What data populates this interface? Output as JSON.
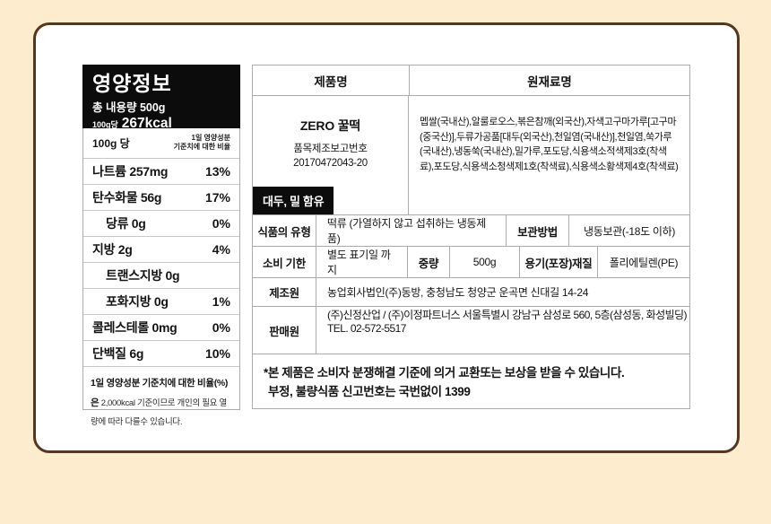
{
  "page": {
    "background_color": "#fdeccd",
    "card_border_color": "#55361e"
  },
  "nutrition": {
    "title": "영양정보",
    "total_amount": "총 내용량 500g",
    "per_unit": "100g당",
    "kcal": "267kcal",
    "serving_label": "100g 당",
    "serving_note_line1": "1일 영양성분",
    "serving_note_line2": "기준치에 대한 비율",
    "rows": [
      {
        "name": "나트륨 257mg",
        "pct": "13%"
      },
      {
        "name": "탄수화물 56g",
        "pct": "17%"
      },
      {
        "name": "당류 0g",
        "pct": "0%"
      },
      {
        "name": "지방 2g",
        "pct": "4%"
      },
      {
        "name": "트랜스지방 0g",
        "pct": ""
      },
      {
        "name": "포화지방 0g",
        "pct": "1%"
      },
      {
        "name": "콜레스테롤 0mg",
        "pct": "0%"
      },
      {
        "name": "단백질 6g",
        "pct": "10%"
      }
    ],
    "footnote_bold": "1일 영양성분 기준치에 대한 비율(%)은",
    "footnote_rest": " 2,000kcal 기준이므로 개인의 필요 열량에 따라 다를수 있습니다."
  },
  "product": {
    "header_product": "제품명",
    "header_ingredients": "원재료명",
    "name": "ZERO 꿀떡",
    "report_label": "품목제조보고번호",
    "report_number": "20170472043-20",
    "ingredients": "멥쌀(국내산),알룰로오스,볶은참깨(외국산),자색고구마가루[고구마(중국산)],두류가공품[대두(외국산),천일염(국내산)],천일염,쑥가루(국내산),냉동쑥(국내산),밀가루,포도당,식용색소적색제3호(착색료),포도당,식용색소청색제1호(착색료),식용색소황색제4호(착색료)",
    "allergen_badge": "대두, 밀 함유",
    "type_label": "식품의 유형",
    "type_value": "떡류 (가열하지 않고 섭취하는 냉동제품)",
    "storage_label": "보관방법",
    "storage_value": "냉동보관(-18도 이하)",
    "expiry_label": "소비 기한",
    "expiry_value": "별도 표기일 까지",
    "weight_label": "중량",
    "weight_value": "500g",
    "package_label": "용기(포장)재질",
    "package_value": "폴리에틸렌(PE)",
    "manufacturer_label": "제조원",
    "manufacturer_value": "농업회사법인(주)동방, 충청남도 청양군 운곡면 신대길 14-24",
    "seller_label": "판매원",
    "seller_value": "(주)신정산업 / (주)이정파트너스 서울특별시 강남구 삼성로 560, 5층(삼성동, 화성빌딩)",
    "seller_tel": "TEL. 02-572-5517",
    "notice_line1": "*본 제품은 소비자 분쟁해결 기준에 의거 교환또는 보상을 받을 수 있습니다.",
    "notice_line2": "부정, 불량식품 신고번호는 국번없이 1399"
  }
}
